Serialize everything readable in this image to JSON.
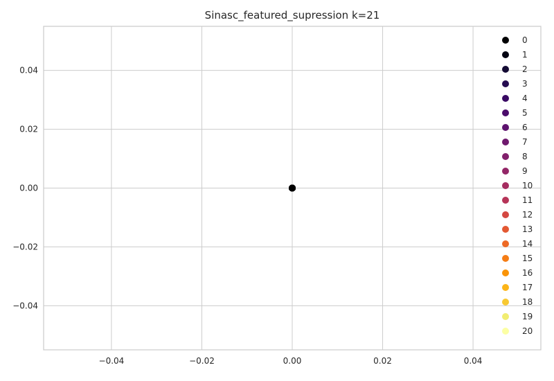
{
  "chart_data": {
    "type": "scatter",
    "title": "Sinasc_featured_supression k=21",
    "xlabel": "",
    "ylabel": "",
    "xlim": [
      -0.055,
      0.055
    ],
    "ylim": [
      -0.055,
      0.055
    ],
    "xticks": [
      -0.04,
      -0.02,
      0.0,
      0.02,
      0.04
    ],
    "xtick_labels": [
      "−0.04",
      "−0.02",
      "0.00",
      "0.02",
      "0.04"
    ],
    "yticks": [
      -0.04,
      -0.02,
      0.0,
      0.02,
      0.04
    ],
    "ytick_labels": [
      "−0.04",
      "−0.02",
      "0.00",
      "0.02",
      "0.04"
    ],
    "grid": true,
    "legend_position": "right",
    "series": [
      {
        "name": "0",
        "color": "#000004",
        "x": [
          0
        ],
        "y": [
          0
        ]
      },
      {
        "name": "1",
        "color": "#040312",
        "x": [
          0
        ],
        "y": [
          0
        ]
      },
      {
        "name": "2",
        "color": "#140b34",
        "x": [
          0
        ],
        "y": [
          0
        ]
      },
      {
        "name": "3",
        "color": "#260c51",
        "x": [
          0
        ],
        "y": [
          0
        ]
      },
      {
        "name": "4",
        "color": "#390963",
        "x": [
          0
        ],
        "y": [
          0
        ]
      },
      {
        "name": "5",
        "color": "#4b0c6b",
        "x": [
          0
        ],
        "y": [
          0
        ]
      },
      {
        "name": "6",
        "color": "#5d126e",
        "x": [
          0
        ],
        "y": [
          0
        ]
      },
      {
        "name": "7",
        "color": "#6f196e",
        "x": [
          0
        ],
        "y": [
          0
        ]
      },
      {
        "name": "8",
        "color": "#82206c",
        "x": [
          0
        ],
        "y": [
          0
        ]
      },
      {
        "name": "9",
        "color": "#932667",
        "x": [
          0
        ],
        "y": [
          0
        ]
      },
      {
        "name": "10",
        "color": "#a52c60",
        "x": [
          0
        ],
        "y": [
          0
        ]
      },
      {
        "name": "11",
        "color": "#b63458",
        "x": [
          0
        ],
        "y": [
          0
        ]
      },
      {
        "name": "12",
        "color": "#d44842",
        "x": [
          0
        ],
        "y": [
          0
        ]
      },
      {
        "name": "13",
        "color": "#e35933",
        "x": [
          0
        ],
        "y": [
          0
        ]
      },
      {
        "name": "14",
        "color": "#ed6925",
        "x": [
          0
        ],
        "y": [
          0
        ]
      },
      {
        "name": "15",
        "color": "#f57d15",
        "x": [
          0
        ],
        "y": [
          0
        ]
      },
      {
        "name": "16",
        "color": "#fa9407",
        "x": [
          0
        ],
        "y": [
          0
        ]
      },
      {
        "name": "17",
        "color": "#fcb519",
        "x": [
          0
        ],
        "y": [
          0
        ]
      },
      {
        "name": "18",
        "color": "#f8c932",
        "x": [
          0
        ],
        "y": [
          0
        ]
      },
      {
        "name": "19",
        "color": "#f1ed71",
        "x": [
          0
        ],
        "y": [
          0
        ]
      },
      {
        "name": "20",
        "color": "#fcffa4",
        "x": [
          0
        ],
        "y": [
          0
        ]
      }
    ]
  }
}
